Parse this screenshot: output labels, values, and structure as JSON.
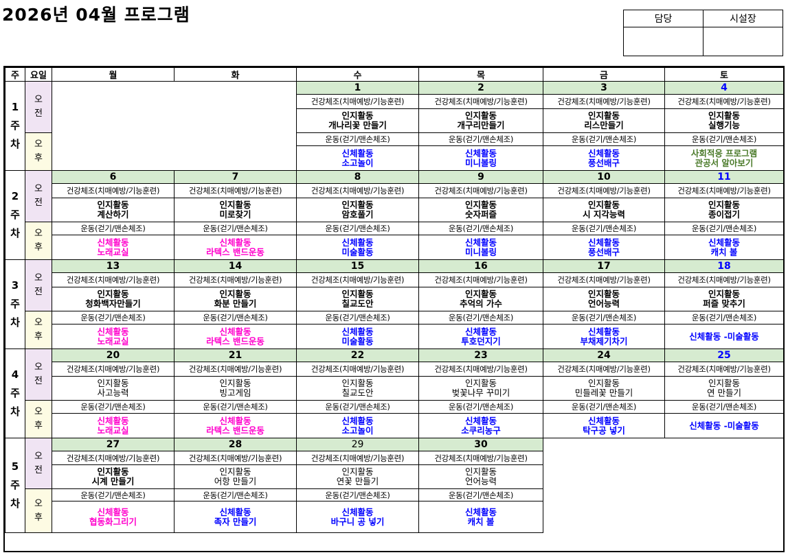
{
  "title": "2026년 04월  프로그램",
  "approval": {
    "headers": [
      "담당",
      "시설장"
    ]
  },
  "colors": {
    "date_bg": "#d6ebd0",
    "am_bg": "#f0e4f3",
    "pm_bg": "#fdfbe3",
    "saturday": "#0000ff",
    "black": "#000000",
    "blue": "#0000ff",
    "magenta": "#ff00cc",
    "green": "#4a7a29"
  },
  "header": {
    "week_col": "주",
    "yoil_col": "요일",
    "days": [
      "월",
      "화",
      "수",
      "목",
      "금",
      "토"
    ]
  },
  "am_label": "오\n전",
  "pm_label": "오\n후",
  "weeks": [
    {
      "label": "1\n주\n차",
      "days": [
        null,
        null,
        {
          "date": "1",
          "morning": "건강체조(치매예방/기능훈련)",
          "cognitive": [
            "인지활동",
            "개나리꽃 만들기"
          ],
          "cog_bold": true,
          "exercise": "운동(걷기/맨손체조)",
          "physical": [
            "신체활동",
            "소고놀이"
          ],
          "phys_color": "blue"
        },
        {
          "date": "2",
          "morning": "건강체조(치매예방/기능훈련)",
          "cognitive": [
            "인지활동",
            "개구리만들기"
          ],
          "cog_bold": true,
          "exercise": "운동(걷기/맨손체조)",
          "physical": [
            "신체활동",
            "미니볼링"
          ],
          "phys_color": "blue"
        },
        {
          "date": "3",
          "morning": "건강체조(치매예방/기능훈련)",
          "cognitive": [
            "인지활동",
            "리스만들기"
          ],
          "cog_bold": true,
          "exercise": "운동(걷기/맨손체조)",
          "physical": [
            "신체활동",
            "풍선배구"
          ],
          "phys_color": "blue"
        },
        {
          "date": "4",
          "sat": true,
          "morning": "건강체조(치매예방/기능훈련)",
          "cognitive": [
            "인지활동",
            "실행기능"
          ],
          "cog_bold": true,
          "exercise": "운동(걷기/맨손체조)",
          "physical": [
            "사회적응 프로그램",
            "관공서 알아보기"
          ],
          "phys_color": "green"
        }
      ]
    },
    {
      "label": "2\n주\n차",
      "days": [
        {
          "date": "6",
          "morning": "건강체조(치매예방/기능훈련)",
          "cognitive": [
            "인지활동",
            "계산하기"
          ],
          "cog_bold": true,
          "exercise": "운동(걷기/맨손체조)",
          "physical": [
            "신체활동",
            "노래교실"
          ],
          "phys_color": "magenta"
        },
        {
          "date": "7",
          "morning": "건강체조(치매예방/기능훈련)",
          "cognitive": [
            "인지활동",
            "미로찾기"
          ],
          "cog_bold": true,
          "exercise": "운동(걷기/맨손체조)",
          "physical": [
            "신체활동",
            "라텍스 밴드운동"
          ],
          "phys_color": "magenta"
        },
        {
          "date": "8",
          "morning": "건강체조(치매예방/기능훈련)",
          "cognitive": [
            "인지활동",
            "암호풀기"
          ],
          "cog_bold": true,
          "exercise": "운동(걷기/맨손체조)",
          "physical": [
            "신체활동",
            "미술활동"
          ],
          "phys_color": "blue"
        },
        {
          "date": "9",
          "morning": "건강체조(치매예방/기능훈련)",
          "cognitive": [
            "인지활동",
            "숫자퍼즐"
          ],
          "cog_bold": true,
          "exercise": "운동(걷기/맨손체조)",
          "physical": [
            "신체활동",
            "미니볼링"
          ],
          "phys_color": "blue"
        },
        {
          "date": "10",
          "morning": "건강체조(치매예방/기능훈련)",
          "cognitive": [
            "인지활동",
            "시 지각능력"
          ],
          "cog_bold": true,
          "exercise": "운동(걷기/맨손체조)",
          "physical": [
            "신체활동",
            "풍선배구"
          ],
          "phys_color": "blue"
        },
        {
          "date": "11",
          "sat": true,
          "morning": "건강체조(치매예방/기능훈련)",
          "cognitive": [
            "인지활동",
            "종이접기"
          ],
          "cog_bold": true,
          "exercise": "운동(걷기/맨손체조)",
          "physical": [
            "신체활동",
            "캐치 볼"
          ],
          "phys_color": "blue"
        }
      ]
    },
    {
      "label": "3\n주\n차",
      "days": [
        {
          "date": "13",
          "morning": "건강체조(치매예방/기능훈련)",
          "cognitive": [
            "인지활동",
            "청화백자만들기"
          ],
          "cog_bold": true,
          "exercise": "운동(걷기/맨손체조)",
          "physical": [
            "신체활동",
            "노래교실"
          ],
          "phys_color": "magenta"
        },
        {
          "date": "14",
          "morning": "건강체조(치매예방/기능훈련)",
          "cognitive": [
            "인지활동",
            "화분 만들기"
          ],
          "cog_bold": true,
          "exercise": "운동(걷기/맨손체조)",
          "physical": [
            "신체활동",
            "라텍스 밴드운동"
          ],
          "phys_color": "magenta"
        },
        {
          "date": "15",
          "morning": "건강체조(치매예방/기능훈련)",
          "cognitive": [
            "인지활동",
            "칠교도안"
          ],
          "cog_bold": true,
          "exercise": "운동(걷기/맨손체조)",
          "physical": [
            "신체활동",
            "미술활동"
          ],
          "phys_color": "blue"
        },
        {
          "date": "16",
          "morning": "건강체조(치매예방/기능훈련)",
          "cognitive": [
            "인지활동",
            "추억의 가수"
          ],
          "cog_bold": true,
          "exercise": "운동(걷기/맨손체조)",
          "physical": [
            "신체활동",
            "투호던지기"
          ],
          "phys_color": "blue"
        },
        {
          "date": "17",
          "morning": "건강체조(치매예방/기능훈련)",
          "cognitive": [
            "인지활동",
            "언어능력"
          ],
          "cog_bold": true,
          "exercise": "운동(걷기/맨손체조)",
          "physical": [
            "신체활동",
            "부채제기차기"
          ],
          "phys_color": "blue"
        },
        {
          "date": "18",
          "sat": true,
          "morning": "건강체조(치매예방/기능훈련)",
          "cognitive": [
            "인지활동",
            "퍼즐 맞추기"
          ],
          "cog_bold": true,
          "exercise": "운동(걷기/맨손체조)",
          "physical": [
            "신체활동 -미술활동"
          ],
          "phys_color": "blue"
        }
      ]
    },
    {
      "label": "4\n주\n차",
      "days": [
        {
          "date": "20",
          "morning": "건강체조(치매예방/기능훈련)",
          "cognitive": [
            "인지활동",
            "사고능력"
          ],
          "cog_bold": false,
          "exercise": "운동(걷기/맨손체조)",
          "physical": [
            "신체활동",
            "노래교실"
          ],
          "phys_color": "magenta"
        },
        {
          "date": "21",
          "morning": "건강체조(치매예방/기능훈련)",
          "cognitive": [
            "인지활동",
            "빙고게임"
          ],
          "cog_bold": false,
          "exercise": "운동(걷기/맨손체조)",
          "physical": [
            "신체활동",
            "라텍스 밴드운동"
          ],
          "phys_color": "magenta"
        },
        {
          "date": "22",
          "morning": "건강체조(치매예방/기능훈련)",
          "cognitive": [
            "인지활동",
            "칠교도안"
          ],
          "cog_bold": false,
          "exercise": "운동(걷기/맨손체조)",
          "physical": [
            "신체활동",
            "소고놀이"
          ],
          "phys_color": "blue"
        },
        {
          "date": "23",
          "morning": "건강체조(치매예방/기능훈련)",
          "cognitive": [
            "인지활동",
            "벚꽃나무 꾸미기"
          ],
          "cog_bold": false,
          "exercise": "운동(걷기/맨손체조)",
          "physical": [
            "신체활동",
            "소쿠리농구"
          ],
          "phys_color": "blue"
        },
        {
          "date": "24",
          "morning": "건강체조(치매예방/기능훈련)",
          "cognitive": [
            "인지활동",
            "민들레꽃 만들기"
          ],
          "cog_bold": false,
          "exercise": "운동(걷기/맨손체조)",
          "physical": [
            "신체활동",
            "탁구공 넣기"
          ],
          "phys_color": "blue"
        },
        {
          "date": "25",
          "sat": true,
          "morning": "건강체조(치매예방/기능훈련)",
          "cognitive": [
            "인지활동",
            "연 만들기"
          ],
          "cog_bold": false,
          "exercise": "운동(걷기/맨손체조)",
          "physical": [
            "신체활동 -미술활동"
          ],
          "phys_color": "blue"
        }
      ]
    },
    {
      "label": "5\n주\n차",
      "days": [
        {
          "date": "27",
          "morning": "건강체조(치매예방/기능훈련)",
          "cognitive": [
            "인지활동",
            "시계 만들기"
          ],
          "cog_bold": true,
          "exercise": "운동(걷기/맨손체조)",
          "physical": [
            "신체활동",
            "협동화그리기"
          ],
          "phys_color": "magenta"
        },
        {
          "date": "28",
          "morning": "건강체조(치매예방/기능훈련)",
          "cognitive": [
            "인지활동",
            "어항 만들기"
          ],
          "cog_bold": false,
          "exercise": "운동(걷기/맨손체조)",
          "physical": [
            "신체활동",
            "족자 만들기"
          ],
          "phys_color": "blue"
        },
        {
          "date": "29",
          "morning": "건강체조(치매예방/기능훈련)",
          "cognitive": [
            "인지활동",
            "연꽃 만들기"
          ],
          "cog_bold": false,
          "exercise": "운동(걷기/맨손체조)",
          "physical": [
            "신체활동",
            "바구니 공 넣기"
          ],
          "phys_color": "blue"
        },
        {
          "date": "30",
          "morning": "건강체조(치매예방/기능훈련)",
          "cognitive": [
            "인지활동",
            "언어능력"
          ],
          "cog_bold": false,
          "exercise": "운동(걷기/맨손체조)",
          "physical": [
            "신체활동",
            "캐치 볼"
          ],
          "phys_color": "blue"
        },
        null,
        null
      ]
    }
  ]
}
